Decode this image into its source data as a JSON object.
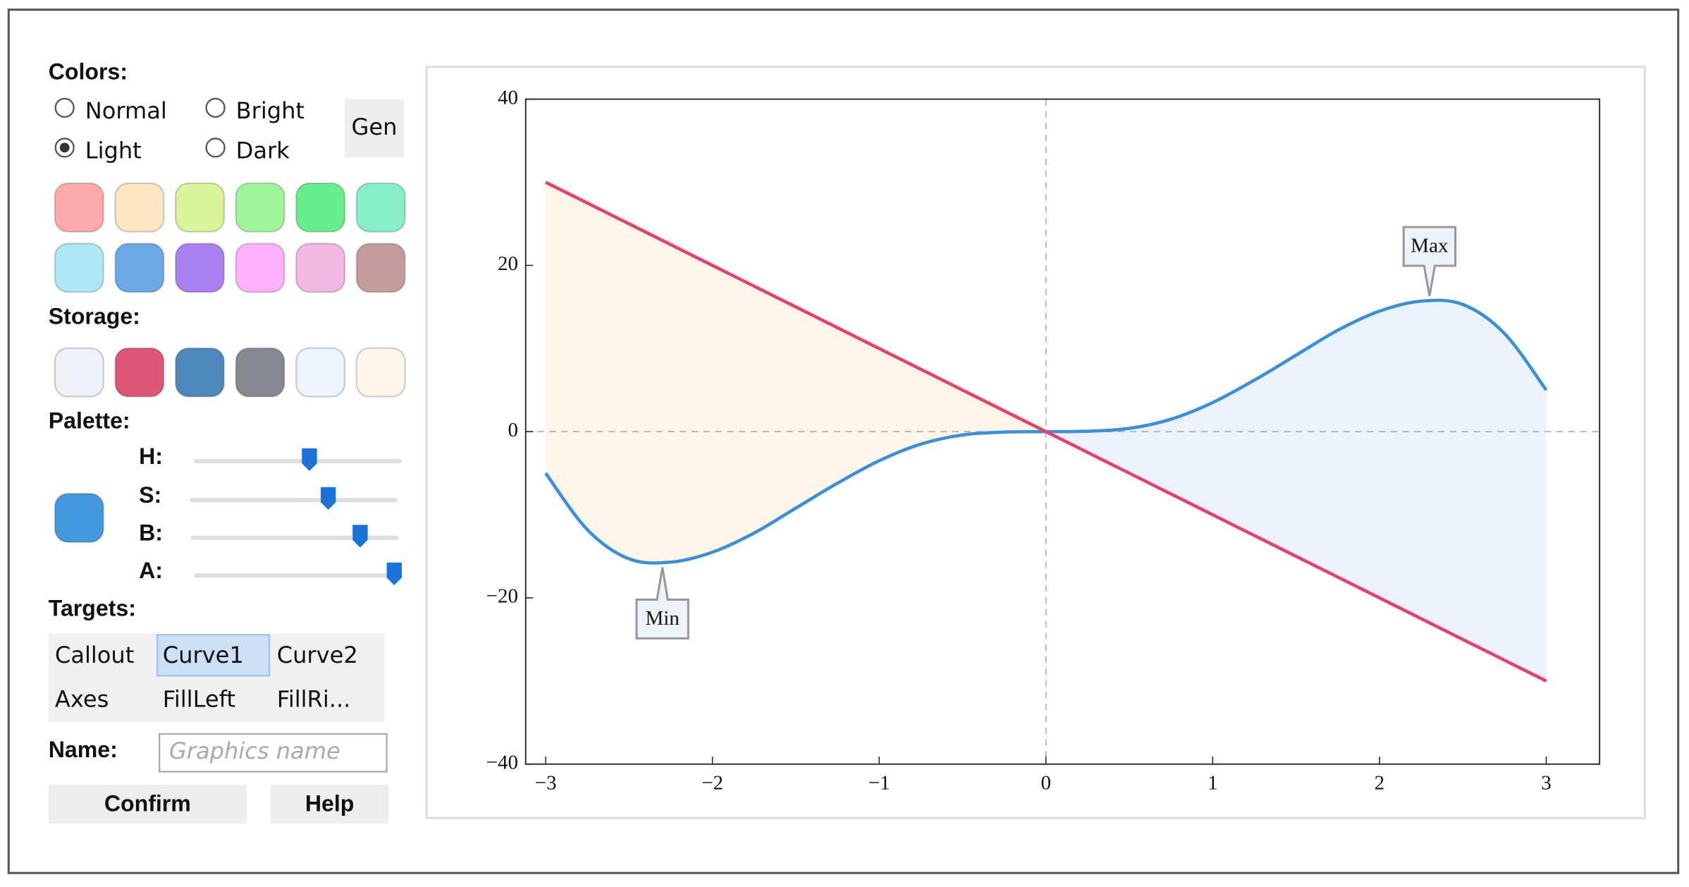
{
  "panel": {
    "colors_label": "Colors:",
    "modes": [
      {
        "label": "Normal",
        "selected": false
      },
      {
        "label": "Bright",
        "selected": false
      },
      {
        "label": "Light",
        "selected": true
      },
      {
        "label": "Dark",
        "selected": false
      }
    ],
    "gen_button": "Gen",
    "swatches": [
      "#ffaaaa",
      "#ffe6c2",
      "#d8f59a",
      "#9ef59a",
      "#66ee8a",
      "#88eec8",
      "#aee8f5",
      "#6aa8e8",
      "#aa80f0",
      "#ffb0ff",
      "#f5b8e5",
      "#c49ca0"
    ],
    "storage_label": "Storage:",
    "storage": [
      "#eef2f8",
      "#dd5577",
      "#4f88bb",
      "#888890",
      "#eef4fc",
      "#fdf6ea"
    ],
    "palette_label": "Palette:",
    "palette_color": "#4499dd",
    "sliders": [
      {
        "label": "H:",
        "value": 0.56
      },
      {
        "label": "S:",
        "value": 0.68
      },
      {
        "label": "B:",
        "value": 0.84
      },
      {
        "label": "A:",
        "value": 1
      }
    ],
    "targets_label": "Targets:",
    "targets": [
      [
        "Callout",
        "Curve1",
        "Curve2"
      ],
      [
        "Axes",
        "FillLeft",
        "FillRi..."
      ]
    ],
    "selected_target": [
      0,
      1
    ],
    "name_label": "Name:",
    "name_placeholder": "Graphics name",
    "buttons": [
      "Confirm",
      "Help"
    ]
  },
  "chart_data": {
    "type": "line",
    "x": [
      -3,
      -2.75,
      -2.5,
      -2.25,
      -2,
      -1.75,
      -1.5,
      -1.25,
      -1,
      -0.75,
      -0.5,
      -0.25,
      0,
      0.25,
      0.5,
      0.75,
      1,
      1.25,
      1.5,
      1.75,
      2,
      2.25,
      2.5,
      2.75,
      3
    ],
    "series": [
      {
        "color": "#3a8fd8",
        "values": [
          -5,
          -11.8,
          -15.3,
          -15.7,
          -14.5,
          -12.2,
          -9.2,
          -6.2,
          -3.5,
          -1.5,
          -0.4,
          -0.05,
          0,
          0.05,
          0.4,
          1.5,
          3.5,
          6.2,
          9.2,
          12.2,
          14.5,
          15.7,
          15.3,
          11.8,
          5
        ]
      },
      {
        "color": "#e8406a",
        "values": [
          30,
          27.5,
          25,
          22.5,
          20,
          17.5,
          15,
          12.5,
          10,
          7.5,
          5,
          2.5,
          0,
          -2.5,
          -5,
          -7.5,
          -10,
          -12.5,
          -15,
          -17.5,
          -20,
          -22.5,
          -25,
          -27.5,
          -30
        ]
      }
    ],
    "fills": [
      {
        "range": [
          -3,
          0
        ],
        "color": "#fdf5e8"
      },
      {
        "range": [
          0,
          3
        ],
        "color": "#ebf2fb"
      }
    ],
    "annotations": [
      {
        "text": "Max",
        "x": 2.3,
        "y": 15.8
      },
      {
        "text": "Min",
        "x": -2.3,
        "y": -15.8
      }
    ],
    "xlim": [
      -3.12,
      3.32
    ],
    "ylim": [
      -40,
      40
    ],
    "xticks": [
      {
        "value": -3,
        "label": "−3"
      },
      {
        "value": -2,
        "label": "−2"
      },
      {
        "value": -1,
        "label": "−1"
      },
      0,
      1,
      2,
      3
    ],
    "yticks": [
      {
        "value": -40,
        "label": "−40"
      },
      {
        "value": -20,
        "label": "−20"
      },
      0,
      20,
      40
    ]
  }
}
